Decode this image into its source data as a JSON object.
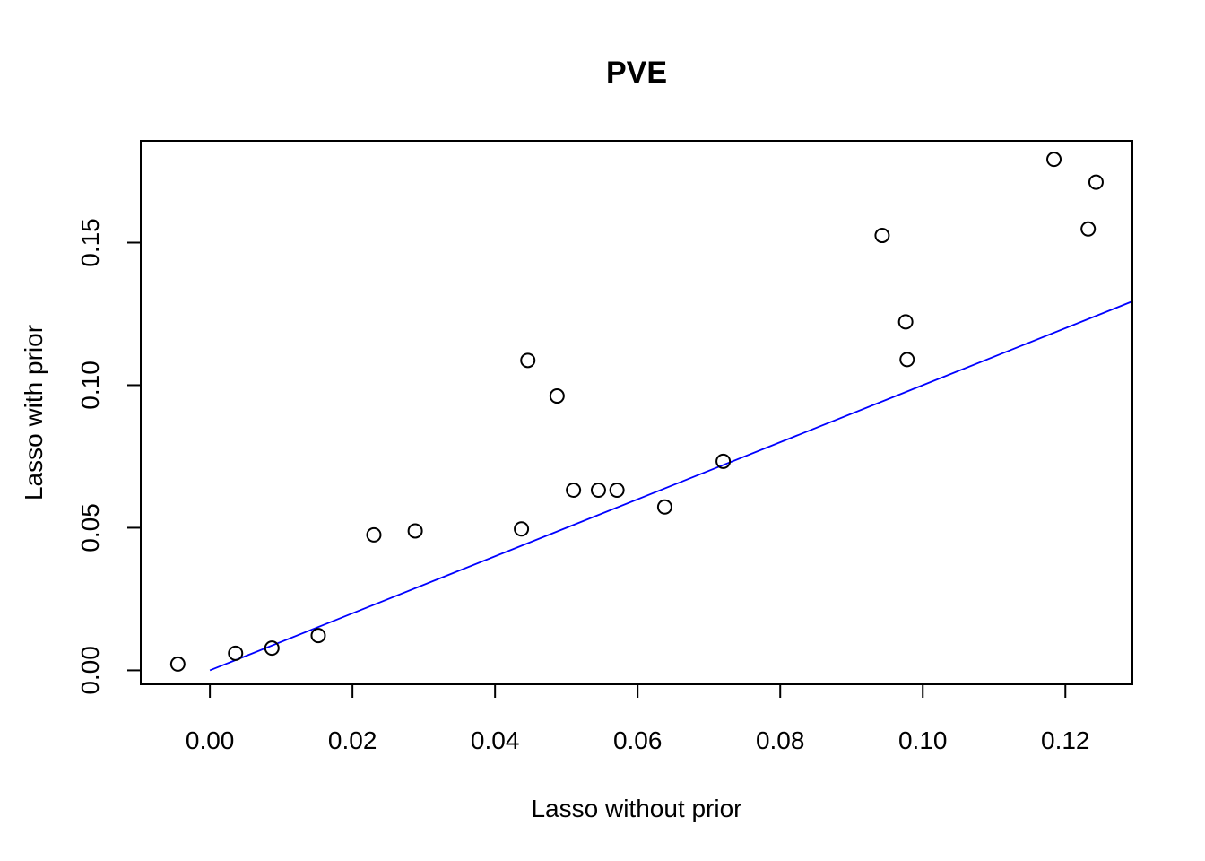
{
  "chart_data": {
    "type": "scatter",
    "title": "PVE",
    "xlabel": "Lasso without prior",
    "ylabel": "Lasso with prior",
    "xlim": [
      -0.0097,
      0.1294
    ],
    "ylim": [
      -0.0049,
      0.1857
    ],
    "xticks": [
      0.0,
      0.02,
      0.04,
      0.06,
      0.08,
      0.1,
      0.12
    ],
    "xtick_labels": [
      "0.00",
      "0.02",
      "0.04",
      "0.06",
      "0.08",
      "0.10",
      "0.12"
    ],
    "yticks": [
      0.0,
      0.05,
      0.1,
      0.15
    ],
    "ytick_labels": [
      "0.00",
      "0.05",
      "0.10",
      "0.15"
    ],
    "grid": false,
    "points": [
      {
        "x": -0.0045,
        "y": 0.0022
      },
      {
        "x": 0.0036,
        "y": 0.006
      },
      {
        "x": 0.0087,
        "y": 0.0078
      },
      {
        "x": 0.0152,
        "y": 0.0122
      },
      {
        "x": 0.023,
        "y": 0.0475
      },
      {
        "x": 0.0288,
        "y": 0.0489
      },
      {
        "x": 0.0437,
        "y": 0.0496
      },
      {
        "x": 0.0446,
        "y": 0.1087
      },
      {
        "x": 0.0487,
        "y": 0.0962
      },
      {
        "x": 0.051,
        "y": 0.0632
      },
      {
        "x": 0.0545,
        "y": 0.0632
      },
      {
        "x": 0.0571,
        "y": 0.0632
      },
      {
        "x": 0.0638,
        "y": 0.0573
      },
      {
        "x": 0.072,
        "y": 0.0733
      },
      {
        "x": 0.0943,
        "y": 0.1525
      },
      {
        "x": 0.0976,
        "y": 0.1222
      },
      {
        "x": 0.0978,
        "y": 0.109
      },
      {
        "x": 0.1184,
        "y": 0.1792
      },
      {
        "x": 0.1232,
        "y": 0.1548
      },
      {
        "x": 0.1243,
        "y": 0.1712
      }
    ],
    "reference_line": {
      "intercept": 0,
      "slope": 1,
      "color": "#0000ff"
    },
    "point_style": {
      "shape": "open-circle",
      "color": "#000000"
    }
  }
}
